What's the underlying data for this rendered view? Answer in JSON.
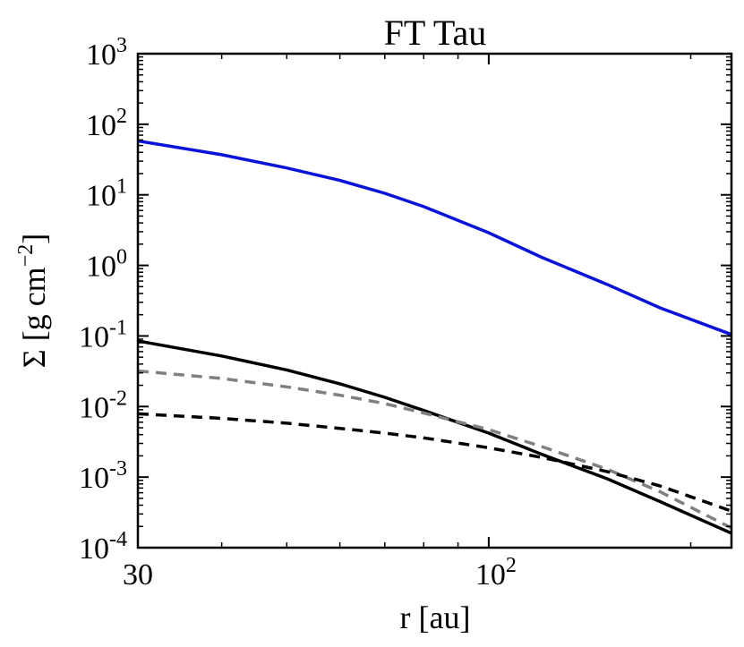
{
  "chart_data": {
    "type": "line",
    "title": "FT Tau",
    "xlabel": "r [au]",
    "ylabel": "Σ [g cm",
    "ylabel_exp": "−2",
    "ylabel_close": "]",
    "xscale": "log",
    "yscale": "log",
    "xlim": [
      30,
      230
    ],
    "ylim": [
      0.0001,
      1000
    ],
    "grid": false,
    "x_ticks": [
      {
        "value": 30,
        "base": "30",
        "exp": ""
      },
      {
        "value": 100,
        "base": "10",
        "exp": "2"
      }
    ],
    "y_ticks": [
      {
        "value": 0.0001,
        "base": "10",
        "exp": "-4"
      },
      {
        "value": 0.001,
        "base": "10",
        "exp": "-3"
      },
      {
        "value": 0.01,
        "base": "10",
        "exp": "-2"
      },
      {
        "value": 0.1,
        "base": "10",
        "exp": "-1"
      },
      {
        "value": 1,
        "base": "10",
        "exp": "0"
      },
      {
        "value": 10,
        "base": "10",
        "exp": "1"
      },
      {
        "value": 100,
        "base": "10",
        "exp": "2"
      },
      {
        "value": 1000,
        "base": "10",
        "exp": "3"
      }
    ],
    "series": [
      {
        "color": "#0a14d8",
        "style": "solid",
        "x": [
          30,
          40,
          50,
          60,
          70,
          80,
          100,
          120,
          150,
          180,
          230
        ],
        "y": [
          58,
          37,
          24,
          16,
          10.5,
          6.8,
          2.9,
          1.3,
          0.54,
          0.25,
          0.105
        ]
      },
      {
        "color": "#000000",
        "style": "solid",
        "x": [
          30,
          40,
          50,
          60,
          70,
          80,
          100,
          120,
          150,
          180,
          230
        ],
        "y": [
          0.085,
          0.052,
          0.033,
          0.021,
          0.0135,
          0.0088,
          0.0042,
          0.0021,
          0.00095,
          0.00045,
          0.00016
        ]
      },
      {
        "color": "#808080",
        "style": "dashed",
        "x": [
          30,
          40,
          50,
          60,
          70,
          80,
          100,
          120,
          150,
          180,
          230
        ],
        "y": [
          0.032,
          0.025,
          0.019,
          0.0145,
          0.011,
          0.0081,
          0.0047,
          0.0027,
          0.0013,
          0.00062,
          0.00019
        ]
      },
      {
        "color": "#000000",
        "style": "dashed",
        "x": [
          30,
          40,
          50,
          60,
          70,
          80,
          100,
          120,
          150,
          180,
          230
        ],
        "y": [
          0.0079,
          0.0068,
          0.0058,
          0.0049,
          0.0042,
          0.0036,
          0.0026,
          0.0019,
          0.0012,
          0.00075,
          0.00033
        ]
      }
    ]
  }
}
